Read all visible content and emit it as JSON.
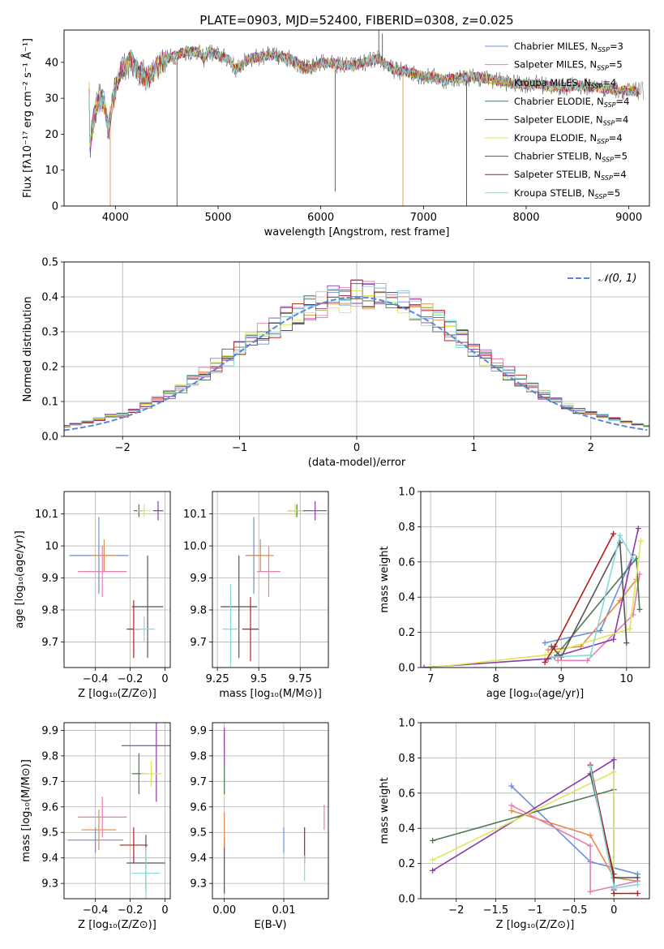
{
  "figure": {
    "title": "PLATE=0903, MJD=52400, FIBERID=0308, z=0.025"
  },
  "colors": {
    "Chabrier MILES": "#6a8fdc",
    "Salpeter MILES": "#e48a4a",
    "Kroupa MILES": "#c7a23a",
    "Chabrier ELODIE": "#4d7a55",
    "Salpeter ELODIE": "#8e3aa8",
    "Kroupa ELODIE": "#dfe65a",
    "Chabrier STELIB": "#555555",
    "Salpeter STELIB": "#b01e1e",
    "Kroupa STELIB": "#86d8dc",
    "pink": "#e87fb0",
    "green_mid": "#66aa66"
  },
  "chart_data": [
    {
      "id": "spectrum",
      "type": "line",
      "xlabel": "wavelength [Angstrom, rest frame]",
      "ylabel": "Flux [fλ10⁻¹⁷ erg cm⁻² s⁻¹ Å⁻¹]",
      "xlim": [
        3500,
        9200
      ],
      "ylim": [
        0,
        49
      ],
      "xticks": [
        4000,
        5000,
        6000,
        7000,
        8000,
        9000
      ],
      "yticks": [
        0,
        10,
        20,
        30,
        40
      ],
      "legend_position": "top-right",
      "legend": [
        {
          "label": "Chabrier MILES, N",
          "sub": "SSP",
          "suffix": "=3",
          "color": "#6a8fdc"
        },
        {
          "label": "Salpeter MILES, N",
          "sub": "SSP",
          "suffix": "=5",
          "color": "#e87fb0"
        },
        {
          "label": "Kroupa MILES, N",
          "sub": "SSP",
          "suffix": "=4",
          "color": "#c7a23a"
        },
        {
          "label": "Chabrier ELODIE, N",
          "sub": "SSP",
          "suffix": "=4",
          "color": "#4d7a55"
        },
        {
          "label": "Salpeter ELODIE, N",
          "sub": "SSP",
          "suffix": "=4",
          "color": "#8e3aa8"
        },
        {
          "label": "Kroupa ELODIE, N",
          "sub": "SSP",
          "suffix": "=4",
          "color": "#dfe65a"
        },
        {
          "label": "Chabrier STELIB, N",
          "sub": "SSP",
          "suffix": "=5",
          "color": "#555555"
        },
        {
          "label": "Salpeter STELIB, N",
          "sub": "SSP",
          "suffix": "=4",
          "color": "#b01e1e"
        },
        {
          "label": "Kroupa STELIB, N",
          "sub": "SSP",
          "suffix": "=5",
          "color": "#86d8dc"
        }
      ],
      "continuum": [
        [
          3750,
          17
        ],
        [
          3800,
          26
        ],
        [
          3850,
          30
        ],
        [
          3900,
          28
        ],
        [
          3930,
          21
        ],
        [
          3970,
          29
        ],
        [
          4050,
          38
        ],
        [
          4150,
          40
        ],
        [
          4250,
          37
        ],
        [
          4300,
          35
        ],
        [
          4400,
          39
        ],
        [
          4500,
          41
        ],
        [
          4600,
          42
        ],
        [
          4700,
          43
        ],
        [
          4800,
          43
        ],
        [
          4861,
          41
        ],
        [
          4900,
          43
        ],
        [
          5000,
          42
        ],
        [
          5100,
          41
        ],
        [
          5175,
          38
        ],
        [
          5300,
          41
        ],
        [
          5500,
          42
        ],
        [
          5700,
          41
        ],
        [
          5890,
          38
        ],
        [
          6000,
          40
        ],
        [
          6300,
          39
        ],
        [
          6563,
          41
        ],
        [
          6700,
          38
        ],
        [
          6900,
          37
        ],
        [
          7000,
          36
        ],
        [
          7100,
          36
        ],
        [
          7200,
          35
        ],
        [
          7300,
          35.5
        ],
        [
          7500,
          36
        ],
        [
          7700,
          35
        ],
        [
          7900,
          34
        ],
        [
          8100,
          34
        ],
        [
          8300,
          33
        ],
        [
          8500,
          33.5
        ],
        [
          8700,
          33
        ],
        [
          9000,
          32
        ],
        [
          9100,
          32
        ]
      ],
      "spikes": [
        {
          "x": 3950,
          "y0": 28,
          "y1": 0,
          "color": "#c7a23a"
        },
        {
          "x": 4600,
          "y0": 40,
          "y1": 0,
          "color": "#555555"
        },
        {
          "x": 6140,
          "y0": 38,
          "y1": 4,
          "color": "#555555"
        },
        {
          "x": 6565,
          "y0": 41,
          "y1": 49,
          "color": "#555555"
        },
        {
          "x": 6600,
          "y0": 40,
          "y1": 48,
          "color": "#555555"
        },
        {
          "x": 6800,
          "y0": 37,
          "y1": 0,
          "color": "#c7a23a"
        },
        {
          "x": 7420,
          "y0": 35,
          "y1": 0,
          "color": "#b01e1e"
        }
      ]
    },
    {
      "id": "residuals",
      "type": "step",
      "xlabel": "(data-model)/error",
      "ylabel": "Normed distribution",
      "xlim": [
        -2.5,
        2.5
      ],
      "ylim": [
        0,
        0.5
      ],
      "xticks": [
        -2,
        -1,
        0,
        1,
        2
      ],
      "yticks": [
        0.0,
        0.1,
        0.2,
        0.3,
        0.4,
        0.5
      ],
      "bin_width": 0.1,
      "gaussian_label": "𝒩(0, 1)",
      "gaussian_color": "#5b86d9",
      "legend_position": "top-right"
    },
    {
      "id": "age_vs_Z",
      "type": "errorbar",
      "xlabel": "Z [log₁₀(Z/Z⊙)]",
      "ylabel": "age  [log₁₀(age/yr)]",
      "xlim": [
        -0.58,
        0.03
      ],
      "ylim": [
        9.62,
        10.17
      ],
      "xticks": [
        -0.4,
        -0.2,
        0.0
      ],
      "yticks": [
        9.7,
        9.8,
        9.9,
        10.0,
        10.1
      ],
      "points": [
        {
          "x": -0.38,
          "y": 9.97,
          "xerr": 0.17,
          "yerr": 0.12,
          "color": "#6a8fdc"
        },
        {
          "x": -0.35,
          "y": 9.97,
          "xerr": 0.07,
          "yerr": 0.05,
          "color": "#e48a4a"
        },
        {
          "x": -0.36,
          "y": 9.92,
          "xerr": 0.14,
          "yerr": 0.08,
          "color": "#e87fb0"
        },
        {
          "x": -0.15,
          "y": 10.11,
          "xerr": 0.03,
          "yerr": 0.02,
          "color": "#4d7a55"
        },
        {
          "x": -0.04,
          "y": 10.11,
          "xerr": 0.03,
          "yerr": 0.03,
          "color": "#8e3aa8"
        },
        {
          "x": -0.12,
          "y": 10.11,
          "xerr": 0.04,
          "yerr": 0.02,
          "color": "#dfe65a"
        },
        {
          "x": -0.1,
          "y": 9.81,
          "xerr": 0.09,
          "yerr": 0.16,
          "color": "#555555"
        },
        {
          "x": -0.18,
          "y": 9.74,
          "xerr": 0.04,
          "yerr": 0.09,
          "color": "#b01e1e"
        },
        {
          "x": -0.12,
          "y": 9.74,
          "xerr": 0.06,
          "yerr": 0.04,
          "color": "#86d8dc"
        }
      ]
    },
    {
      "id": "age_vs_mass",
      "type": "errorbar",
      "xlabel": "mass [log₁₀(M/M⊙)]",
      "ylabel": "",
      "xlim": [
        9.22,
        9.92
      ],
      "ylim": [
        9.62,
        10.17
      ],
      "xticks": [
        9.25,
        9.5,
        9.75
      ],
      "yticks": [
        9.7,
        9.8,
        9.9,
        10.0,
        10.1
      ],
      "points": [
        {
          "x": 9.47,
          "y": 9.97,
          "xerr": 0.05,
          "yerr": 0.12,
          "color": "#6a8fdc"
        },
        {
          "x": 9.51,
          "y": 9.97,
          "xerr": 0.08,
          "yerr": 0.05,
          "color": "#e48a4a"
        },
        {
          "x": 9.56,
          "y": 9.92,
          "xerr": 0.07,
          "yerr": 0.08,
          "color": "#e87fb0"
        },
        {
          "x": 9.73,
          "y": 10.11,
          "xerr": 0.05,
          "yerr": 0.02,
          "color": "#4d7a55"
        },
        {
          "x": 9.84,
          "y": 10.11,
          "xerr": 0.07,
          "yerr": 0.03,
          "color": "#8e3aa8"
        },
        {
          "x": 9.72,
          "y": 10.11,
          "xerr": 0.05,
          "yerr": 0.02,
          "color": "#dfe65a"
        },
        {
          "x": 9.38,
          "y": 9.81,
          "xerr": 0.11,
          "yerr": 0.16,
          "color": "#555555"
        },
        {
          "x": 9.45,
          "y": 9.74,
          "xerr": 0.05,
          "yerr": 0.1,
          "color": "#b01e1e"
        },
        {
          "x": 9.33,
          "y": 9.74,
          "xerr": 0.05,
          "yerr": 0.14,
          "color": "#86d8dc"
        }
      ]
    },
    {
      "id": "weight_vs_age",
      "type": "line",
      "xlabel": "age  [log₁₀(age/yr)]",
      "ylabel": "mass weight",
      "xlim": [
        6.85,
        10.35
      ],
      "ylim": [
        0.0,
        1.0
      ],
      "xticks": [
        7,
        8,
        9,
        10
      ],
      "yticks": [
        0.0,
        0.2,
        0.4,
        0.6,
        0.8,
        1.0
      ],
      "series": [
        {
          "color": "#6a8fdc",
          "x": [
            8.75,
            9.6,
            10.1
          ],
          "y": [
            0.14,
            0.21,
            0.64
          ]
        },
        {
          "color": "#e48a4a",
          "x": [
            8.8,
            9.3,
            9.9,
            10.15
          ],
          "y": [
            0.1,
            0.12,
            0.38,
            0.5
          ]
        },
        {
          "color": "#e87fb0",
          "x": [
            8.95,
            9.4,
            10.1,
            10.2
          ],
          "y": [
            0.04,
            0.04,
            0.3,
            0.53
          ]
        },
        {
          "color": "#4d7a55",
          "x": [
            8.9,
            10.15,
            10.2
          ],
          "y": [
            0.06,
            0.62,
            0.33
          ]
        },
        {
          "color": "#8e3aa8",
          "x": [
            6.9,
            8.8,
            9.8,
            10.18
          ],
          "y": [
            0.0,
            0.05,
            0.16,
            0.79
          ]
        },
        {
          "color": "#dfe65a",
          "x": [
            7.0,
            8.75,
            10.05,
            10.22
          ],
          "y": [
            0.0,
            0.07,
            0.22,
            0.72
          ]
        },
        {
          "color": "#555555",
          "x": [
            8.85,
            9.0,
            9.9,
            10.0
          ],
          "y": [
            0.12,
            0.06,
            0.71,
            0.14
          ]
        },
        {
          "color": "#b01e1e",
          "x": [
            8.75,
            8.9,
            9.8
          ],
          "y": [
            0.03,
            0.12,
            0.76
          ]
        },
        {
          "color": "#86d8dc",
          "x": [
            8.85,
            9.45,
            9.9,
            10.1
          ],
          "y": [
            0.06,
            0.07,
            0.75,
            0.62
          ]
        }
      ]
    },
    {
      "id": "mass_vs_Z",
      "type": "errorbar",
      "xlabel": "Z [log₁₀(Z/Z⊙)]",
      "ylabel": "mass [log₁₀(M/M⊙)]",
      "xlim": [
        -0.58,
        0.03
      ],
      "ylim": [
        9.24,
        9.93
      ],
      "xticks": [
        -0.4,
        -0.2,
        0.0
      ],
      "yticks": [
        9.3,
        9.4,
        9.5,
        9.6,
        9.7,
        9.8,
        9.9
      ],
      "points": [
        {
          "x": -0.4,
          "y": 9.47,
          "xerr": 0.16,
          "yerr": 0.05,
          "color": "#6a8fdc"
        },
        {
          "x": -0.38,
          "y": 9.51,
          "xerr": 0.1,
          "yerr": 0.08,
          "color": "#e48a4a"
        },
        {
          "x": -0.36,
          "y": 9.56,
          "xerr": 0.14,
          "yerr": 0.08,
          "color": "#e87fb0"
        },
        {
          "x": -0.15,
          "y": 9.73,
          "xerr": 0.04,
          "yerr": 0.08,
          "color": "#4d7a55"
        },
        {
          "x": -0.05,
          "y": 9.84,
          "xerr": 0.2,
          "yerr": 0.22,
          "color": "#8e3aa8"
        },
        {
          "x": -0.08,
          "y": 9.73,
          "xerr": 0.06,
          "yerr": 0.05,
          "color": "#dfe65a"
        },
        {
          "x": -0.11,
          "y": 9.38,
          "xerr": 0.11,
          "yerr": 0.11,
          "color": "#555555"
        },
        {
          "x": -0.18,
          "y": 9.45,
          "xerr": 0.08,
          "yerr": 0.07,
          "color": "#b01e1e"
        },
        {
          "x": -0.11,
          "y": 9.34,
          "xerr": 0.08,
          "yerr": 0.1,
          "color": "#86d8dc"
        }
      ]
    },
    {
      "id": "mass_vs_ebv",
      "type": "errorbar",
      "xlabel": "E(B-V)",
      "ylabel": "",
      "xlim": [
        -0.002,
        0.0175
      ],
      "ylim": [
        9.24,
        9.93
      ],
      "xticks": [
        0.0,
        0.01
      ],
      "xticklabels": [
        "0.00",
        "0.01"
      ],
      "yticks": [
        9.3,
        9.4,
        9.5,
        9.6,
        9.7,
        9.8,
        9.9
      ],
      "points": [
        {
          "x": 0.0,
          "y": 9.37,
          "xerr": 0,
          "yerr": 0.11,
          "color": "#555555"
        },
        {
          "x": 0.0,
          "y": 9.51,
          "xerr": 0,
          "yerr": 0.07,
          "color": "#e48a4a"
        },
        {
          "x": 0.0,
          "y": 9.73,
          "xerr": 0,
          "yerr": 0.09,
          "color": "#dfe65a"
        },
        {
          "x": 0.0,
          "y": 9.84,
          "xerr": 0,
          "yerr": 0.07,
          "color": "#8e3aa8"
        },
        {
          "x": 0.0,
          "y": 9.71,
          "xerr": 0,
          "yerr": 0.06,
          "color": "#4d7a55"
        },
        {
          "x": 0.01,
          "y": 9.47,
          "xerr": 0,
          "yerr": 0.05,
          "color": "#6a8fdc"
        },
        {
          "x": 0.0135,
          "y": 9.45,
          "xerr": 0,
          "yerr": 0.07,
          "color": "#b01e1e"
        },
        {
          "x": 0.0135,
          "y": 9.36,
          "xerr": 0,
          "yerr": 0.05,
          "color": "#86d8dc"
        },
        {
          "x": 0.0168,
          "y": 9.56,
          "xerr": 0,
          "yerr": 0.05,
          "color": "#e87fb0"
        }
      ]
    },
    {
      "id": "weight_vs_Z",
      "type": "line",
      "xlabel": "Z [log₁₀(Z/Z⊙)]",
      "ylabel": "mass weight",
      "xlim": [
        -2.45,
        0.45
      ],
      "ylim": [
        0.0,
        1.0
      ],
      "xticks": [
        -2.0,
        -1.5,
        -1.0,
        -0.5,
        0.0
      ],
      "yticks": [
        0.0,
        0.2,
        0.4,
        0.6,
        0.8,
        1.0
      ],
      "series": [
        {
          "color": "#6a8fdc",
          "x": [
            -1.3,
            -0.3,
            0.3
          ],
          "y": [
            0.64,
            0.21,
            0.14
          ]
        },
        {
          "color": "#e48a4a",
          "x": [
            -1.3,
            -0.3,
            0.0,
            0.3
          ],
          "y": [
            0.5,
            0.36,
            0.12,
            0.1
          ]
        },
        {
          "color": "#e87fb0",
          "x": [
            -1.3,
            -0.3,
            -0.3,
            0.3
          ],
          "y": [
            0.53,
            0.3,
            0.04,
            0.1
          ]
        },
        {
          "color": "#4d7a55",
          "x": [
            -2.3,
            0.0,
            0.0
          ],
          "y": [
            0.33,
            0.62,
            0.06
          ]
        },
        {
          "color": "#8e3aa8",
          "x": [
            -2.3,
            0.0,
            0.0
          ],
          "y": [
            0.16,
            0.79,
            0.05
          ]
        },
        {
          "color": "#dfe65a",
          "x": [
            -2.3,
            0.0,
            0.0
          ],
          "y": [
            0.22,
            0.72,
            0.0
          ]
        },
        {
          "color": "#555555",
          "x": [
            -0.3,
            0.0,
            0.0,
            0.3
          ],
          "y": [
            0.71,
            0.14,
            0.12,
            0.12
          ]
        },
        {
          "color": "#b01e1e",
          "x": [
            -0.3,
            0.0,
            0.0,
            0.3
          ],
          "y": [
            0.76,
            0.12,
            0.03,
            0.03
          ]
        },
        {
          "color": "#86d8dc",
          "x": [
            -0.3,
            0.0,
            0.0,
            0.3
          ],
          "y": [
            0.75,
            0.07,
            0.06,
            0.08
          ]
        }
      ]
    }
  ]
}
